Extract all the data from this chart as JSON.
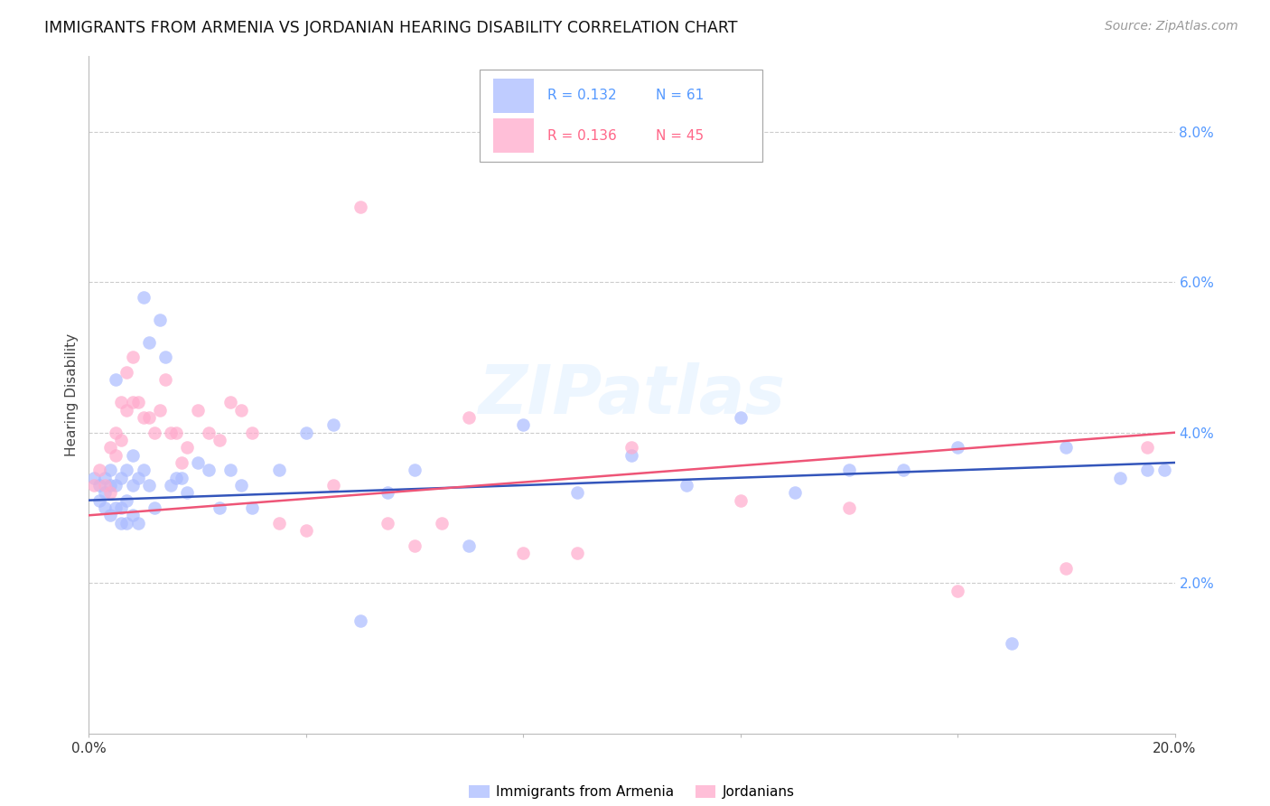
{
  "title": "IMMIGRANTS FROM ARMENIA VS JORDANIAN HEARING DISABILITY CORRELATION CHART",
  "source": "Source: ZipAtlas.com",
  "ylabel": "Hearing Disability",
  "xlim": [
    0.0,
    0.2
  ],
  "ylim": [
    0.0,
    0.09
  ],
  "xtick_positions": [
    0.0,
    0.04,
    0.08,
    0.12,
    0.16,
    0.2
  ],
  "xtick_labels": [
    "0.0%",
    "",
    "",
    "",
    "",
    "20.0%"
  ],
  "yticks_right": [
    0.02,
    0.04,
    0.06,
    0.08
  ],
  "ytick_labels_right": [
    "2.0%",
    "4.0%",
    "6.0%",
    "8.0%"
  ],
  "legend_r1": "R = 0.132",
  "legend_n1": "N = 61",
  "legend_r2": "R = 0.136",
  "legend_n2": "N = 45",
  "background_color": "#ffffff",
  "grid_color": "#cccccc",
  "blue_color": "#aabbff",
  "pink_color": "#ffaacc",
  "line_blue": "#3355bb",
  "line_pink": "#ee5577",
  "text_blue": "#5599ff",
  "text_pink": "#ff6688",
  "watermark": "ZIPatlas",
  "blue_points_x": [
    0.001,
    0.002,
    0.002,
    0.003,
    0.003,
    0.003,
    0.004,
    0.004,
    0.004,
    0.005,
    0.005,
    0.005,
    0.006,
    0.006,
    0.006,
    0.007,
    0.007,
    0.007,
    0.008,
    0.008,
    0.008,
    0.009,
    0.009,
    0.01,
    0.01,
    0.011,
    0.011,
    0.012,
    0.013,
    0.014,
    0.015,
    0.016,
    0.017,
    0.018,
    0.02,
    0.022,
    0.024,
    0.026,
    0.028,
    0.03,
    0.035,
    0.04,
    0.045,
    0.05,
    0.055,
    0.06,
    0.07,
    0.08,
    0.09,
    0.1,
    0.11,
    0.12,
    0.13,
    0.14,
    0.15,
    0.16,
    0.17,
    0.18,
    0.19,
    0.195,
    0.198
  ],
  "blue_points_y": [
    0.034,
    0.033,
    0.031,
    0.034,
    0.032,
    0.03,
    0.035,
    0.033,
    0.029,
    0.047,
    0.033,
    0.03,
    0.034,
    0.03,
    0.028,
    0.035,
    0.031,
    0.028,
    0.037,
    0.033,
    0.029,
    0.034,
    0.028,
    0.058,
    0.035,
    0.033,
    0.052,
    0.03,
    0.055,
    0.05,
    0.033,
    0.034,
    0.034,
    0.032,
    0.036,
    0.035,
    0.03,
    0.035,
    0.033,
    0.03,
    0.035,
    0.04,
    0.041,
    0.015,
    0.032,
    0.035,
    0.025,
    0.041,
    0.032,
    0.037,
    0.033,
    0.042,
    0.032,
    0.035,
    0.035,
    0.038,
    0.012,
    0.038,
    0.034,
    0.035,
    0.035
  ],
  "pink_points_x": [
    0.001,
    0.002,
    0.003,
    0.004,
    0.004,
    0.005,
    0.005,
    0.006,
    0.006,
    0.007,
    0.007,
    0.008,
    0.008,
    0.009,
    0.01,
    0.011,
    0.012,
    0.013,
    0.014,
    0.015,
    0.016,
    0.017,
    0.018,
    0.02,
    0.022,
    0.024,
    0.026,
    0.028,
    0.03,
    0.035,
    0.04,
    0.045,
    0.05,
    0.055,
    0.06,
    0.065,
    0.07,
    0.08,
    0.09,
    0.1,
    0.12,
    0.14,
    0.16,
    0.18,
    0.195
  ],
  "pink_points_y": [
    0.033,
    0.035,
    0.033,
    0.038,
    0.032,
    0.04,
    0.037,
    0.044,
    0.039,
    0.048,
    0.043,
    0.05,
    0.044,
    0.044,
    0.042,
    0.042,
    0.04,
    0.043,
    0.047,
    0.04,
    0.04,
    0.036,
    0.038,
    0.043,
    0.04,
    0.039,
    0.044,
    0.043,
    0.04,
    0.028,
    0.027,
    0.033,
    0.07,
    0.028,
    0.025,
    0.028,
    0.042,
    0.024,
    0.024,
    0.038,
    0.031,
    0.03,
    0.019,
    0.022,
    0.038
  ],
  "blue_trend_x": [
    0.0,
    0.2
  ],
  "blue_trend_y": [
    0.031,
    0.036
  ],
  "pink_trend_x": [
    0.0,
    0.2
  ],
  "pink_trend_y": [
    0.029,
    0.04
  ]
}
